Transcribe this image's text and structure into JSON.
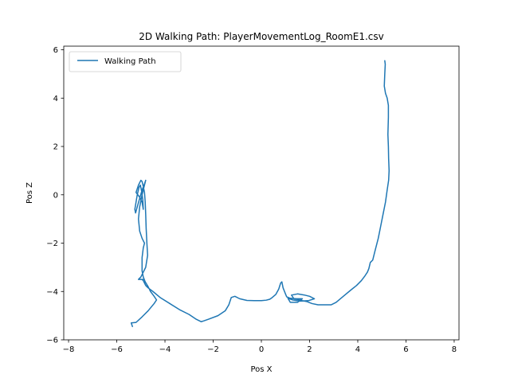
{
  "chart_data": {
    "type": "line",
    "title": "2D Walking Path: PlayerMovementLog_RoomE1.csv",
    "xlabel": "Pos X",
    "ylabel": "Pos Z",
    "xlim": [
      -8.2,
      8.2
    ],
    "ylim": [
      -6.0,
      6.15
    ],
    "xticks": [
      -8,
      -6,
      -4,
      -2,
      0,
      2,
      4,
      6,
      8
    ],
    "yticks": [
      -6,
      -4,
      -2,
      0,
      2,
      4,
      6
    ],
    "xtick_labels": [
      "−8",
      "−6",
      "−4",
      "−2",
      "0",
      "2",
      "4",
      "6",
      "8"
    ],
    "ytick_labels": [
      "−6",
      "−4",
      "−2",
      "0",
      "2",
      "4",
      "6"
    ],
    "grid": false,
    "legend_position": "upper-left",
    "series": [
      {
        "name": "Walking Path",
        "color": "#1f77b4",
        "x": [
          5.12,
          5.14,
          5.12,
          5.1,
          5.15,
          5.22,
          5.27,
          5.27,
          5.25,
          5.27,
          5.28,
          5.3,
          5.28,
          5.22,
          5.15,
          5.05,
          4.95,
          4.85,
          4.72,
          4.62,
          4.52,
          4.46,
          4.4,
          4.3,
          4.15,
          3.95,
          3.7,
          3.4,
          3.1,
          2.9,
          2.75,
          2.55,
          2.35,
          2.1,
          1.9,
          1.7,
          1.5,
          1.35,
          1.25,
          1.5,
          1.8,
          2.0,
          2.2,
          1.95,
          1.6,
          1.3,
          1.1,
          1.2,
          1.5,
          1.7,
          1.45,
          1.2,
          1.05,
          1.0,
          0.9,
          0.85,
          0.8,
          0.72,
          0.6,
          0.45,
          0.35,
          0.2,
          0.0,
          -0.3,
          -0.6,
          -0.9,
          -1.1,
          -1.25,
          -1.35,
          -1.5,
          -1.8,
          -2.2,
          -2.4,
          -2.5,
          -2.7,
          -3.0,
          -3.4,
          -3.8,
          -4.2,
          -4.5,
          -4.7,
          -4.8,
          -4.85,
          -4.9,
          -4.95,
          -4.9,
          -5.0,
          -5.1,
          -5.0,
          -4.8,
          -4.72,
          -4.75,
          -4.78,
          -4.8,
          -4.82,
          -4.85,
          -4.9,
          -4.95,
          -5.0,
          -5.1,
          -5.2,
          -5.05,
          -4.95,
          -4.9,
          -4.92,
          -4.97,
          -5.02,
          -5.08,
          -5.15,
          -5.2,
          -5.25,
          -5.22,
          -5.15,
          -5.05,
          -4.95,
          -4.85,
          -4.8,
          -4.85,
          -4.95,
          -5.05,
          -5.1,
          -5.05,
          -4.95,
          -4.85,
          -4.9,
          -4.95,
          -4.95,
          -4.95,
          -4.9,
          -4.82,
          -4.7,
          -4.6,
          -4.45,
          -4.35,
          -4.45,
          -4.7,
          -4.95,
          -5.2,
          -5.4,
          -5.35
        ],
        "y": [
          5.55,
          5.4,
          5.0,
          4.5,
          4.2,
          4.0,
          3.7,
          3.2,
          2.5,
          2.0,
          1.5,
          1.0,
          0.6,
          0.2,
          -0.3,
          -0.8,
          -1.3,
          -1.8,
          -2.3,
          -2.7,
          -2.8,
          -3.05,
          -3.2,
          -3.35,
          -3.55,
          -3.75,
          -3.95,
          -4.2,
          -4.45,
          -4.55,
          -4.55,
          -4.55,
          -4.55,
          -4.5,
          -4.42,
          -4.38,
          -4.33,
          -4.3,
          -4.15,
          -4.1,
          -4.15,
          -4.2,
          -4.3,
          -4.38,
          -4.4,
          -4.35,
          -4.28,
          -4.45,
          -4.45,
          -4.3,
          -4.3,
          -4.28,
          -4.22,
          -4.1,
          -3.85,
          -3.6,
          -3.65,
          -3.9,
          -4.12,
          -4.25,
          -4.32,
          -4.36,
          -4.38,
          -4.38,
          -4.37,
          -4.3,
          -4.2,
          -4.25,
          -4.55,
          -4.8,
          -5.0,
          -5.15,
          -5.22,
          -5.25,
          -5.15,
          -4.95,
          -4.75,
          -4.5,
          -4.25,
          -4.0,
          -3.85,
          -3.75,
          -3.65,
          -3.55,
          -3.5,
          -3.5,
          -3.5,
          -3.5,
          -3.4,
          -3.0,
          -2.5,
          -2.0,
          -1.4,
          -0.8,
          -0.3,
          0.1,
          0.35,
          0.55,
          0.6,
          0.4,
          0.1,
          -0.1,
          -0.3,
          -0.6,
          -0.2,
          0.15,
          0.4,
          0.3,
          0.0,
          -0.3,
          -0.6,
          -0.75,
          -0.5,
          -0.15,
          0.2,
          0.45,
          0.6,
          0.4,
          0.0,
          -0.5,
          -1.0,
          -1.5,
          -1.8,
          -2.0,
          -2.2,
          -2.6,
          -2.9,
          -3.15,
          -3.4,
          -3.6,
          -3.8,
          -4.0,
          -4.2,
          -4.35,
          -4.5,
          -4.8,
          -5.05,
          -5.28,
          -5.3,
          -5.45
        ]
      }
    ]
  }
}
